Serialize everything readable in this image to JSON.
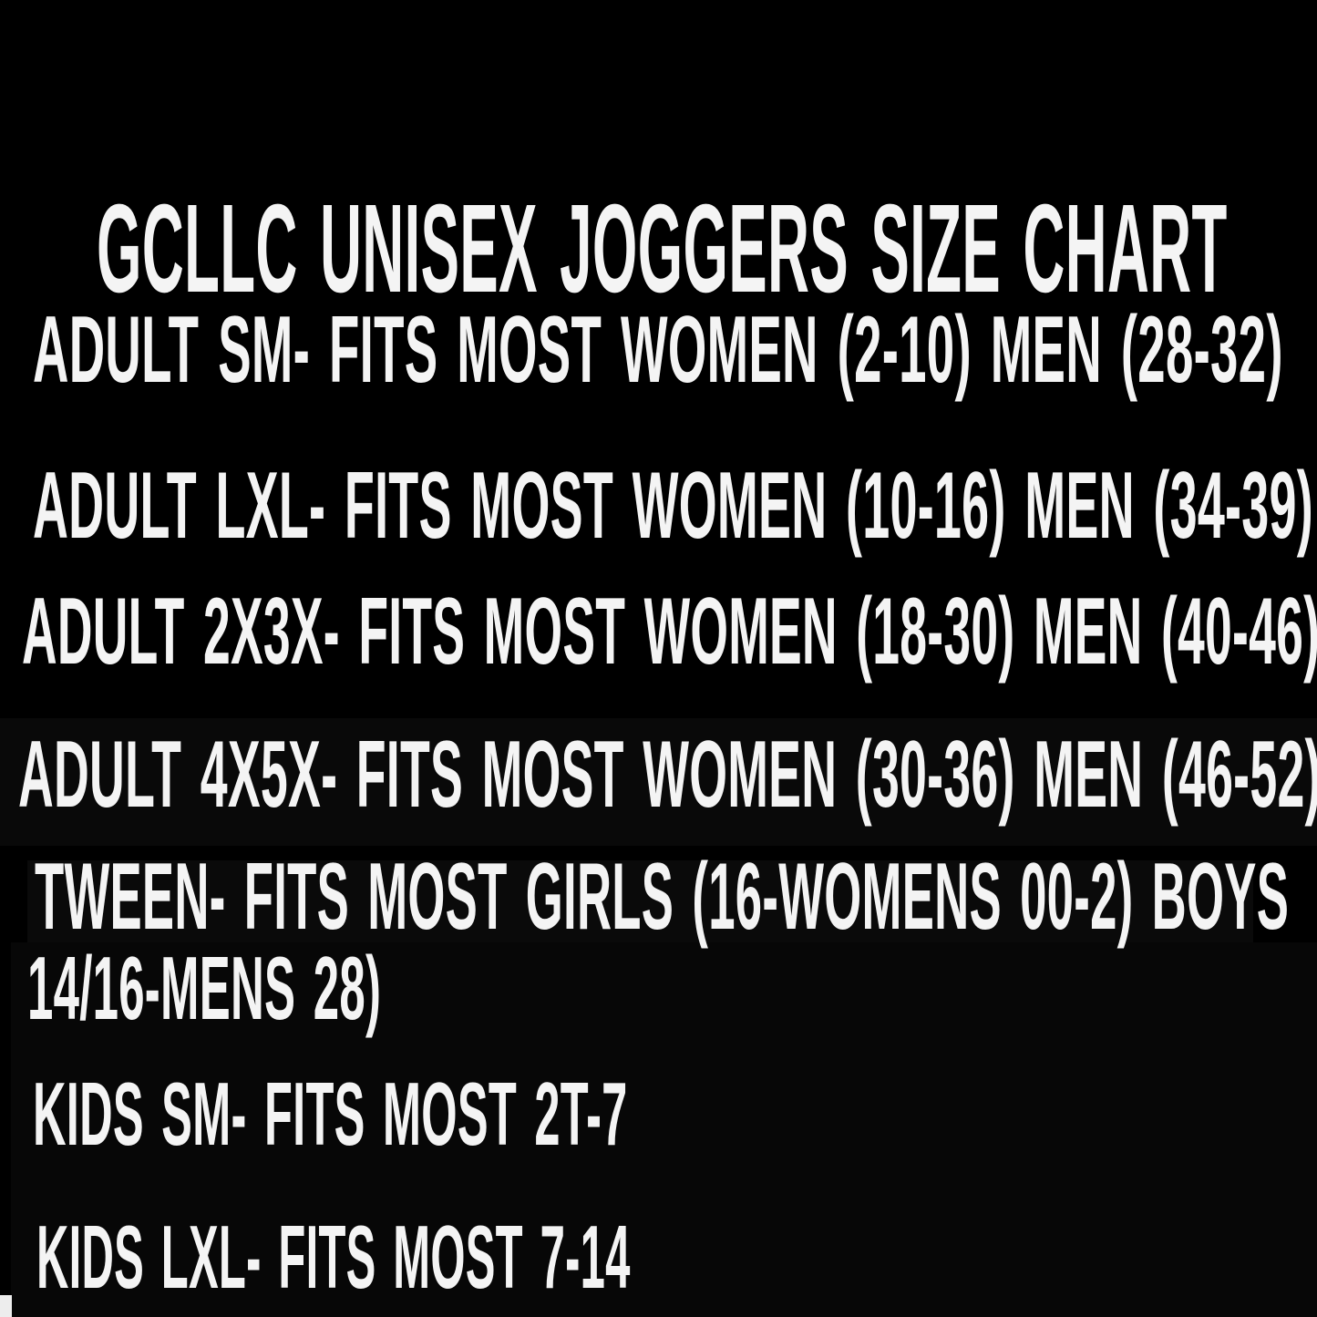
{
  "colors": {
    "background": "#000000",
    "text": "#f4f4f4"
  },
  "title": "GCLLC UNISEX JOGGERS SIZE CHART",
  "lines": [
    "ADULT SM- FITS MOST WOMEN (2-10) MEN (28-32)",
    "ADULT LXL- FITS MOST WOMEN (10-16) MEN (34-39)",
    "ADULT 2X3X- FITS MOST WOMEN (18-30) MEN (40-46)",
    "ADULT 4X5X- FITS MOST WOMEN (30-36) MEN (46-52)",
    "TWEEN- FITS MOST GIRLS (16-WOMENS 00-2) BOYS",
    "14/16-MENS 28)",
    "KIDS SM- FITS MOST 2T-7",
    "KIDS LXL- FITS MOST 7-14"
  ],
  "size_entries": [
    {
      "size": "ADULT SM",
      "fits": "MOST WOMEN (2-10) MEN (28-32)"
    },
    {
      "size": "ADULT LXL",
      "fits": "MOST WOMEN (10-16) MEN (34-39)"
    },
    {
      "size": "ADULT 2X3X",
      "fits": "MOST WOMEN (18-30) MEN (40-46)"
    },
    {
      "size": "ADULT 4X5X",
      "fits": "MOST WOMEN (30-36) MEN (46-52)"
    },
    {
      "size": "TWEEN",
      "fits": "MOST GIRLS (16-WOMENS 00-2) BOYS 14/16-MENS 28)"
    },
    {
      "size": "KIDS SM",
      "fits": "MOST 2T-7"
    },
    {
      "size": "KIDS LXL",
      "fits": "MOST 7-14"
    }
  ]
}
